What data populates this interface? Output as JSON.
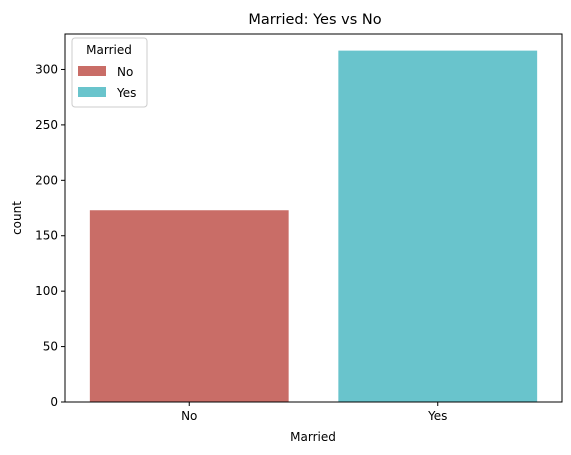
{
  "chart_data": {
    "type": "bar",
    "title": "Married: Yes vs No",
    "xlabel": "Married",
    "ylabel": "count",
    "categories": [
      "No",
      "Yes"
    ],
    "values": [
      173,
      317
    ],
    "colors": [
      "#c96d67",
      "#69c4cc"
    ],
    "ylim": [
      0,
      332
    ],
    "yticks": [
      0,
      50,
      100,
      150,
      200,
      250,
      300
    ],
    "grid": false,
    "legend": {
      "title": "Married",
      "placement": "top-left",
      "entries": [
        "No",
        "Yes"
      ]
    }
  }
}
